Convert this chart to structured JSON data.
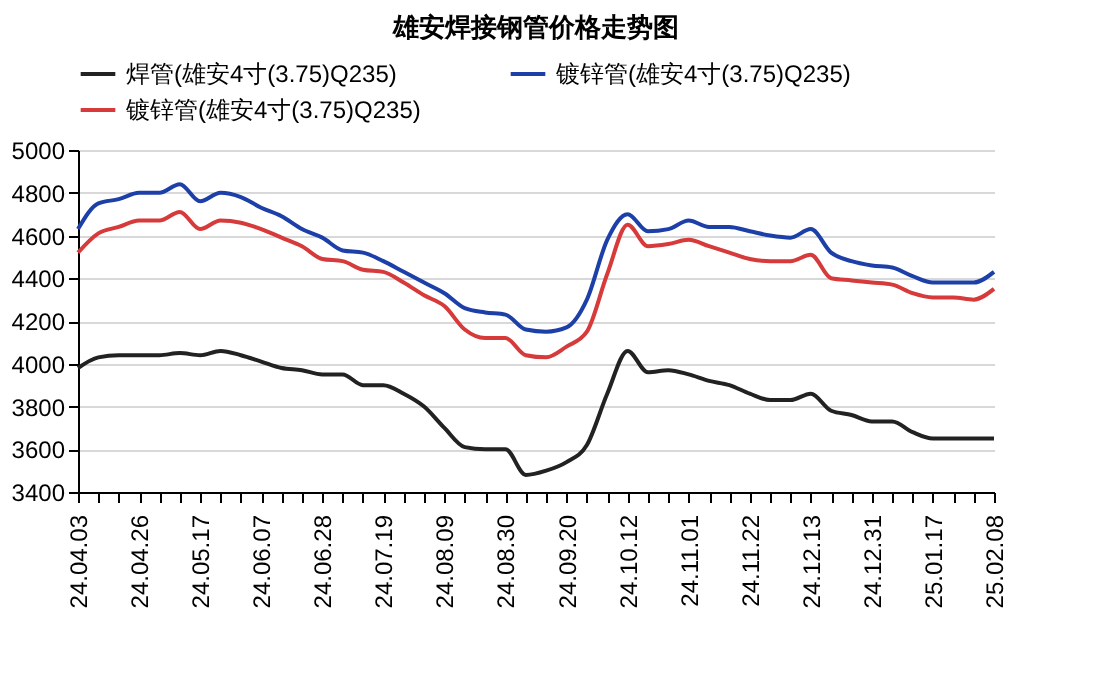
{
  "chart_data": {
    "type": "line",
    "title": "雄安焊接钢管价格走势图",
    "categories": [
      "24.04.03",
      null,
      null,
      "24.04.26",
      null,
      null,
      "24.05.17",
      null,
      null,
      "24.06.07",
      null,
      null,
      "24.06.28",
      null,
      null,
      "24.07.19",
      null,
      null,
      "24.08.09",
      null,
      null,
      "24.08.30",
      null,
      null,
      "24.09.20",
      null,
      null,
      "24.10.12",
      null,
      null,
      "24.11.01",
      null,
      null,
      "24.11.22",
      null,
      null,
      "24.12.13",
      null,
      null,
      "24.12.31",
      null,
      null,
      "25.01.17",
      null,
      null,
      "25.02.08"
    ],
    "series": [
      {
        "name": "焊管(雄安4寸(3.75)Q235)",
        "color": "#222222",
        "values": [
          3980,
          4030,
          4040,
          4040,
          4040,
          4050,
          4040,
          4060,
          4040,
          4010,
          3980,
          3970,
          3950,
          3950,
          3900,
          3900,
          3860,
          3800,
          3700,
          3610,
          3600,
          3600,
          3480,
          3500,
          3540,
          3620,
          3860,
          4060,
          3960,
          3970,
          3950,
          3920,
          3900,
          3860,
          3830,
          3830,
          3860,
          3780,
          3760,
          3730,
          3730,
          3680,
          3650,
          3650,
          3650,
          3650
        ]
      },
      {
        "name": "镀锌管(雄安4寸(3.75)Q235)",
        "color": "#1c3fa8",
        "values": [
          4630,
          4750,
          4770,
          4800,
          4800,
          4840,
          4760,
          4800,
          4780,
          4730,
          4690,
          4630,
          4590,
          4530,
          4520,
          4480,
          4430,
          4380,
          4330,
          4260,
          4240,
          4230,
          4160,
          4150,
          4170,
          4300,
          4580,
          4700,
          4620,
          4630,
          4670,
          4640,
          4640,
          4620,
          4600,
          4590,
          4630,
          4520,
          4480,
          4460,
          4450,
          4410,
          4380,
          4380,
          4380,
          4430
        ]
      },
      {
        "name": "镀锌管(雄安4寸(3.75)Q235)",
        "color": "#d63a3a",
        "values": [
          4520,
          4610,
          4640,
          4670,
          4670,
          4710,
          4630,
          4670,
          4660,
          4630,
          4590,
          4550,
          4490,
          4480,
          4440,
          4430,
          4380,
          4320,
          4270,
          4160,
          4120,
          4120,
          4040,
          4030,
          4080,
          4150,
          4420,
          4650,
          4550,
          4560,
          4580,
          4550,
          4520,
          4490,
          4480,
          4480,
          4510,
          4400,
          4390,
          4380,
          4370,
          4330,
          4310,
          4310,
          4300,
          4350
        ]
      }
    ],
    "ylim": [
      3400,
      5000
    ],
    "yticks": [
      3400,
      3600,
      3800,
      4000,
      4200,
      4400,
      4600,
      4800,
      5000
    ],
    "grid": "y",
    "legend": "top"
  }
}
